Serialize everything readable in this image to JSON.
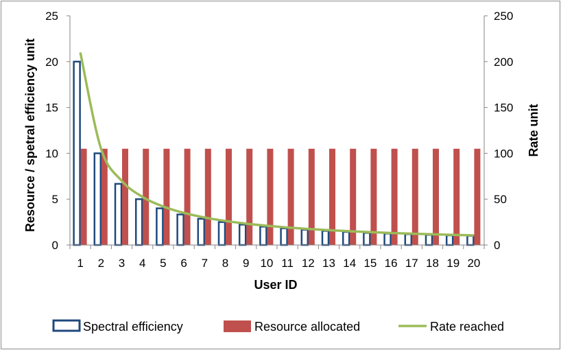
{
  "chart_data": {
    "type": "bar",
    "title": "",
    "xlabel": "User ID",
    "ylabel_left": "Resource / spetral efficiency unit",
    "ylabel_right": "Rate unit",
    "categories": [
      "1",
      "2",
      "3",
      "4",
      "5",
      "6",
      "7",
      "8",
      "9",
      "10",
      "11",
      "12",
      "13",
      "14",
      "15",
      "16",
      "17",
      "18",
      "19",
      "20"
    ],
    "ylim_left": [
      0,
      25
    ],
    "ylim_right": [
      0,
      250
    ],
    "yticks_left": [
      "0",
      "5",
      "10",
      "15",
      "20",
      "25"
    ],
    "yticks_right": [
      "0",
      "50",
      "100",
      "150",
      "200",
      "250"
    ],
    "grid": false,
    "legend_position": "bottom",
    "series": [
      {
        "name": "Spectral efficiency",
        "type": "bar",
        "axis": "left",
        "style": "outline",
        "color": "#1f497d",
        "values": [
          20,
          10,
          6.67,
          5,
          4,
          3.33,
          2.86,
          2.5,
          2.22,
          2,
          1.82,
          1.67,
          1.54,
          1.43,
          1.33,
          1.25,
          1.18,
          1.11,
          1.05,
          1
        ]
      },
      {
        "name": "Resource allocated",
        "type": "bar",
        "axis": "left",
        "style": "filled",
        "color": "#c0504d",
        "values": [
          10.5,
          10.5,
          10.5,
          10.5,
          10.5,
          10.5,
          10.5,
          10.5,
          10.5,
          10.5,
          10.5,
          10.5,
          10.5,
          10.5,
          10.5,
          10.5,
          10.5,
          10.5,
          10.5,
          10.5
        ]
      },
      {
        "name": "Rate reached",
        "type": "line",
        "axis": "right",
        "color": "#9bbb59",
        "values": [
          210,
          105,
          70,
          52.5,
          42,
          35,
          30,
          26.25,
          23.33,
          21,
          19.09,
          17.5,
          16.15,
          15,
          14,
          13.13,
          12.35,
          11.67,
          11.05,
          10.5
        ]
      }
    ]
  }
}
